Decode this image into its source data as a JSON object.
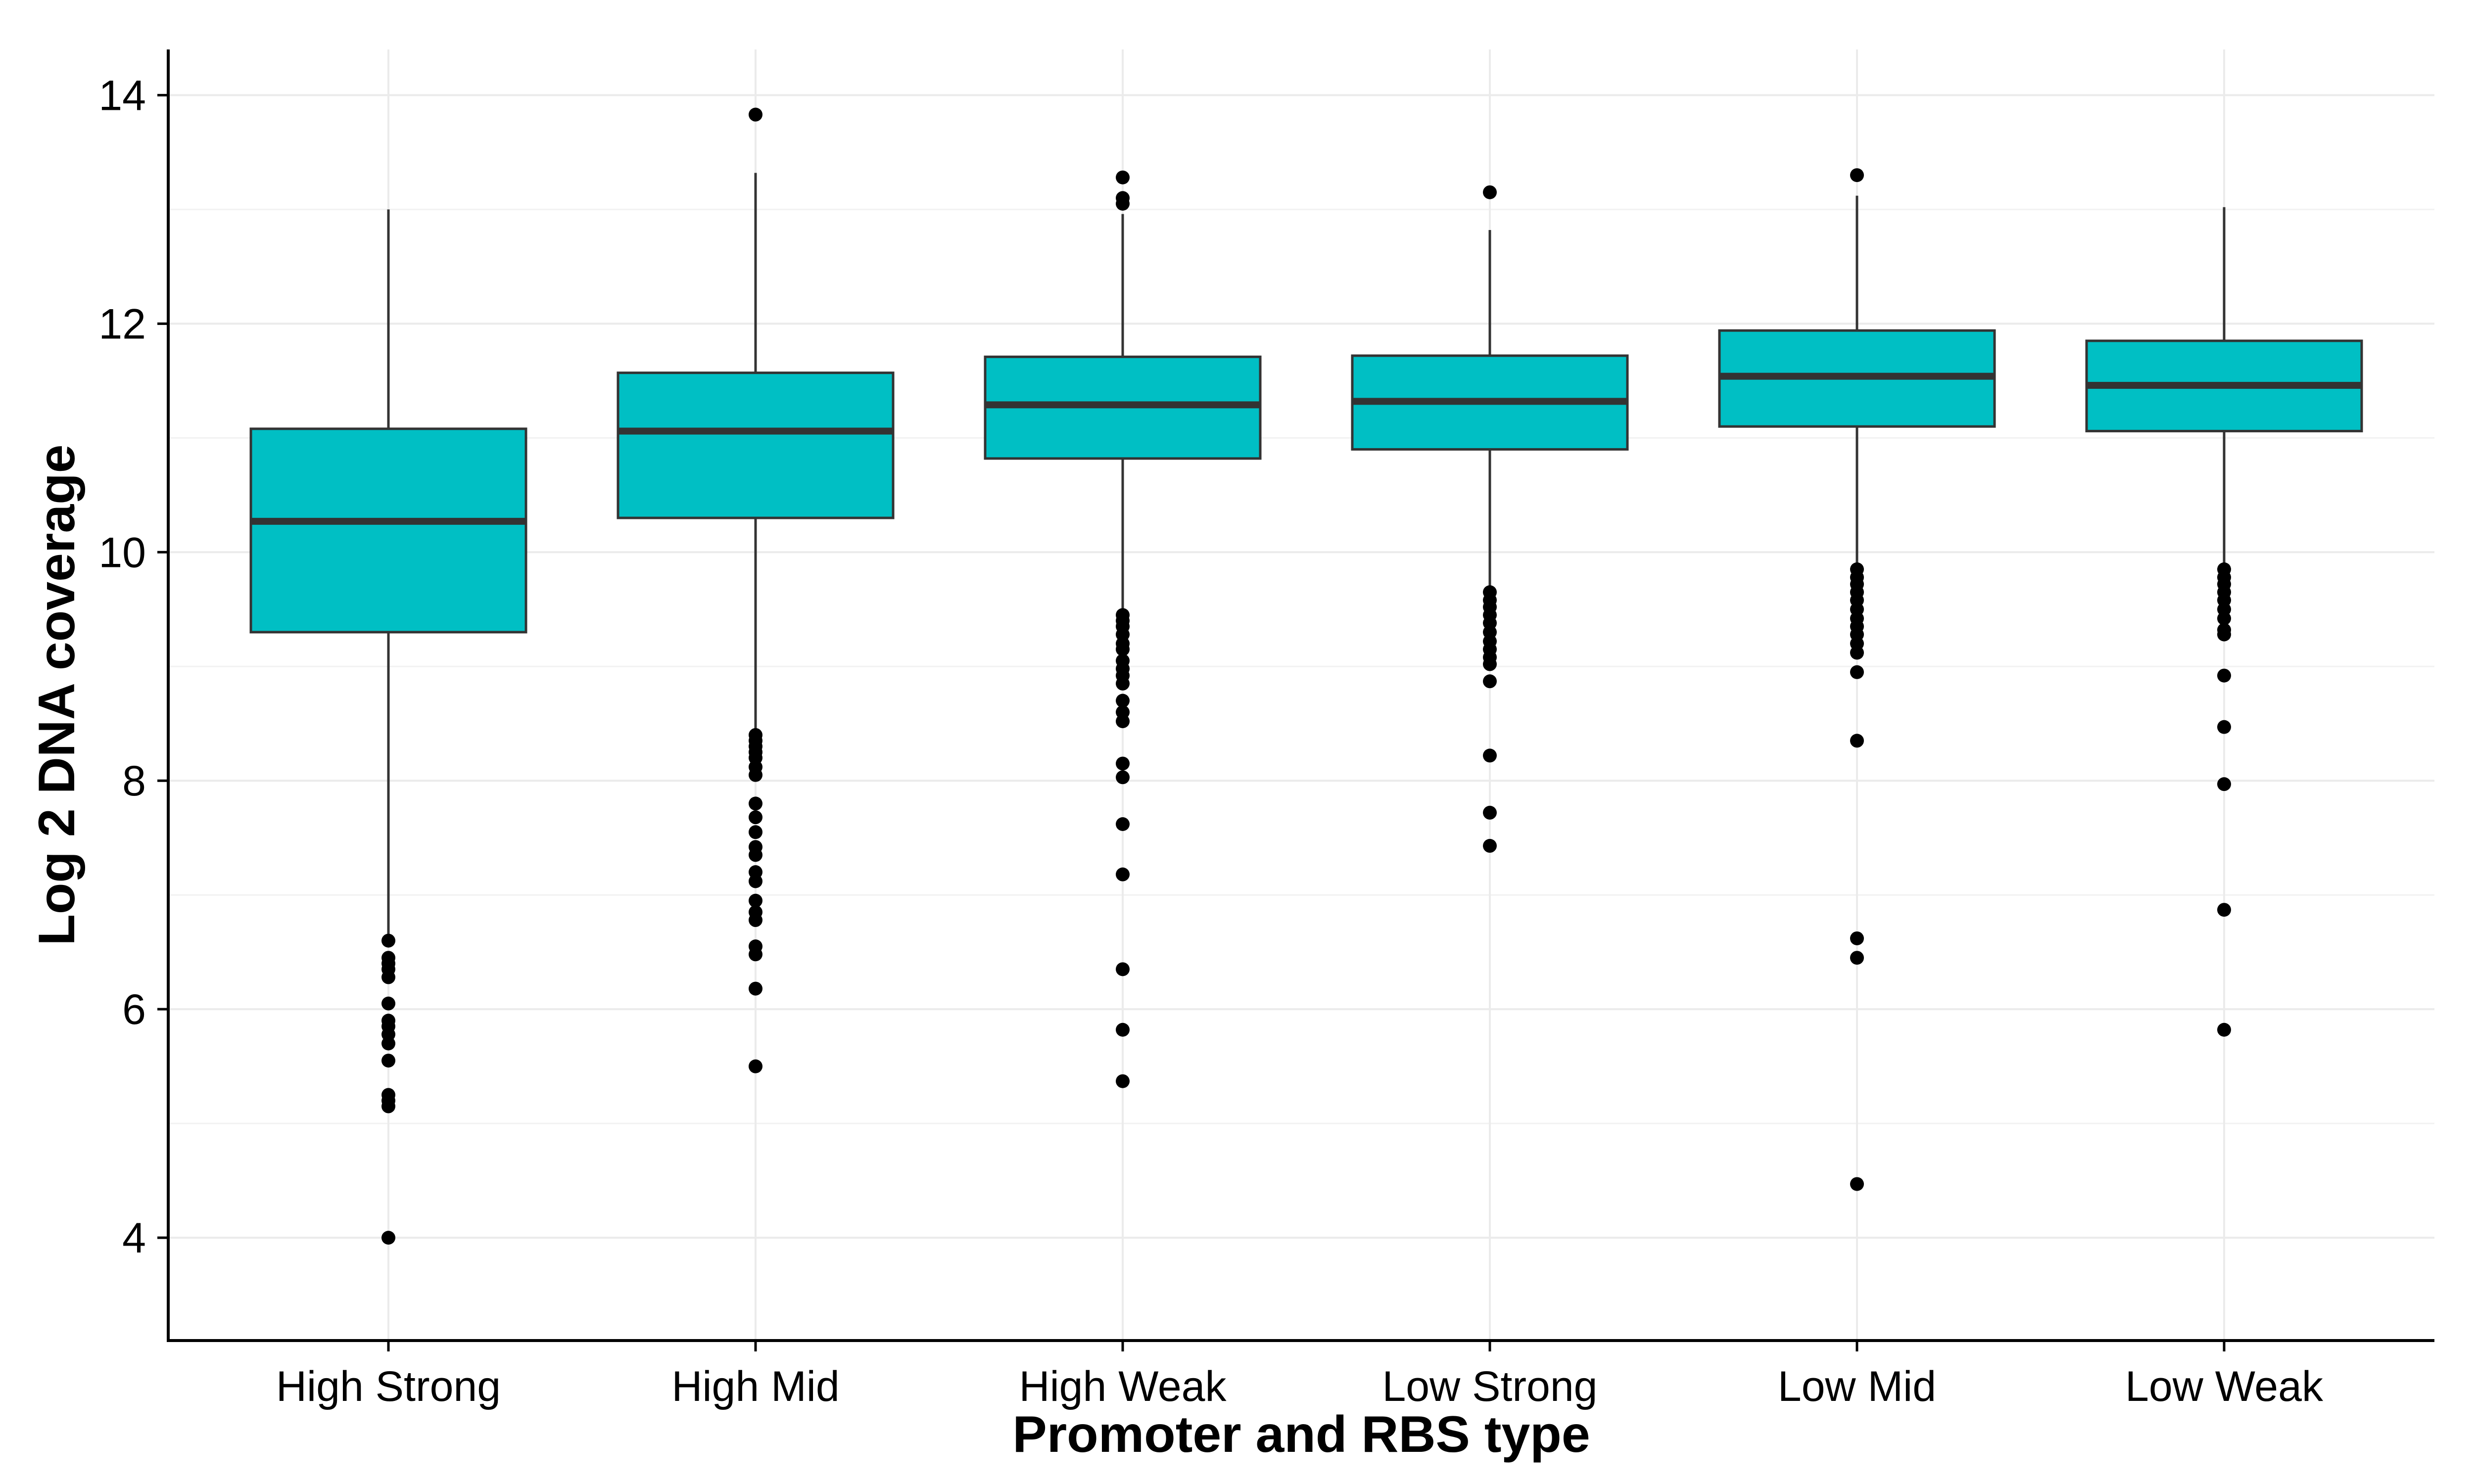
{
  "chart_data": {
    "type": "boxplot",
    "title": "",
    "xlabel": "Promoter and RBS type",
    "ylabel": "Log 2 DNA coverage",
    "ylim": [
      3.1,
      14.4
    ],
    "yticks": [
      4,
      6,
      8,
      10,
      12,
      14
    ],
    "grid": true,
    "legend": "none",
    "box_color": "#00BFC4",
    "categories": [
      "High Strong",
      "High Mid",
      "High Weak",
      "Low Strong",
      "Low Mid",
      "Low Weak"
    ],
    "boxes": [
      {
        "whisker_low": 6.65,
        "q1": 9.3,
        "median": 10.27,
        "q3": 11.08,
        "whisker_high": 13.0,
        "outliers": [
          6.6,
          6.45,
          6.4,
          6.35,
          6.28,
          6.05,
          5.9,
          5.85,
          5.78,
          5.7,
          5.55,
          5.25,
          5.2,
          5.15,
          4.0
        ]
      },
      {
        "whisker_low": 8.45,
        "q1": 10.3,
        "median": 11.06,
        "q3": 11.57,
        "whisker_high": 13.32,
        "outliers": [
          13.83,
          8.4,
          8.35,
          8.3,
          8.25,
          8.2,
          8.12,
          8.05,
          7.8,
          7.68,
          7.55,
          7.42,
          7.35,
          7.2,
          7.12,
          6.95,
          6.85,
          6.78,
          6.55,
          6.48,
          6.18,
          5.5
        ]
      },
      {
        "whisker_low": 9.48,
        "q1": 10.82,
        "median": 11.29,
        "q3": 11.71,
        "whisker_high": 12.96,
        "outliers": [
          13.28,
          13.1,
          13.05,
          9.45,
          9.4,
          9.35,
          9.28,
          9.2,
          9.15,
          9.05,
          8.98,
          8.92,
          8.85,
          8.7,
          8.6,
          8.52,
          8.15,
          8.03,
          7.62,
          7.18,
          6.35,
          5.82,
          5.37
        ]
      },
      {
        "whisker_low": 9.7,
        "q1": 10.9,
        "median": 11.32,
        "q3": 11.72,
        "whisker_high": 12.82,
        "outliers": [
          13.15,
          9.65,
          9.58,
          9.52,
          9.45,
          9.38,
          9.3,
          9.22,
          9.15,
          9.08,
          9.02,
          8.87,
          8.22,
          7.72,
          7.43
        ]
      },
      {
        "whisker_low": 9.88,
        "q1": 11.1,
        "median": 11.54,
        "q3": 11.94,
        "whisker_high": 13.12,
        "outliers": [
          13.3,
          9.85,
          9.78,
          9.72,
          9.65,
          9.58,
          9.5,
          9.42,
          9.35,
          9.28,
          9.2,
          9.12,
          8.95,
          8.35,
          6.62,
          6.45,
          4.47
        ]
      },
      {
        "whisker_low": 9.9,
        "q1": 11.06,
        "median": 11.46,
        "q3": 11.85,
        "whisker_high": 13.02,
        "outliers": [
          9.85,
          9.78,
          9.72,
          9.65,
          9.58,
          9.5,
          9.42,
          9.32,
          9.28,
          8.92,
          8.47,
          7.97,
          6.87,
          5.82
        ]
      }
    ]
  }
}
